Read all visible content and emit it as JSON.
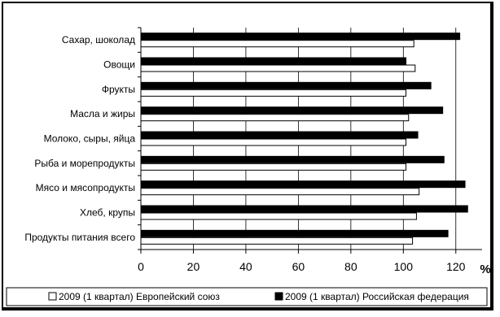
{
  "chart_data": {
    "type": "bar",
    "orientation": "horizontal",
    "categories": [
      "Продукты питания всего",
      "Хлеб, крупы",
      "Мясо и мясопродукты",
      "Рыба и морепродукты",
      "Молоко, сыры, яйца",
      "Масла и жиры",
      "Фрукты",
      "Овощи",
      "Сахар, шоколад"
    ],
    "series": [
      {
        "name": "2009 (1 квартал) Европейский союз",
        "color": "#ffffff",
        "values": [
          103.5,
          105,
          106,
          101,
          101,
          102,
          101,
          104.5,
          104
        ]
      },
      {
        "name": "2009 (1 квартал) Российская федерация",
        "color": "#000000",
        "values": [
          117,
          124.5,
          123.5,
          115.5,
          105.5,
          115,
          110.5,
          101,
          121.5
        ]
      }
    ],
    "xlim": [
      0,
      130
    ],
    "xticks": [
      "0",
      "20",
      "40",
      "60",
      "80",
      "100",
      "120"
    ],
    "unit_label": "%",
    "grid": "vertical",
    "legend": "bottom"
  }
}
